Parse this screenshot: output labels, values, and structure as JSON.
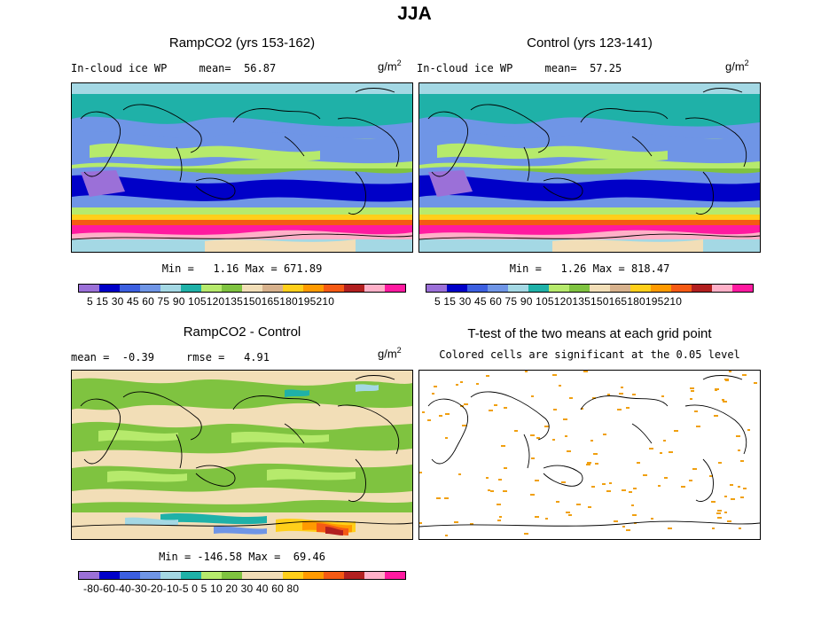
{
  "figure": {
    "title": "JJA"
  },
  "panels": {
    "ramp": {
      "title": "RampCO2 (yrs 153-162)",
      "left_label": "In-cloud ice WP     mean=  56.87",
      "units_base": "g/m",
      "units_sup": "2",
      "stats": "Min =   1.16 Max = 671.89"
    },
    "control": {
      "title": "Control (yrs 123-141)",
      "left_label": "In-cloud ice WP     mean=  57.25",
      "units_base": "g/m",
      "units_sup": "2",
      "stats": "Min =   1.26 Max = 818.47"
    },
    "diff": {
      "title": "RampCO2 - Control",
      "left_label": "mean =  -0.39     rmse =   4.91",
      "units_base": "g/m",
      "units_sup": "2",
      "stats": "Min = -146.58 Max =  69.46"
    },
    "ttest": {
      "title": "T-test of the two means at each grid point",
      "subtitle": "Colored cells are significant at the 0.05 level"
    }
  },
  "colorbars": {
    "abs": {
      "colors": [
        "#9b70d8",
        "#0000c8",
        "#3c5fe0",
        "#6f95e6",
        "#a4d8e4",
        "#1fb1a8",
        "#b6ea6c",
        "#7fc340",
        "#f2deb7",
        "#d7b18c",
        "#ffcf1a",
        "#ff9a00",
        "#f55a14",
        "#b22020",
        "#ffb0c8",
        "#ff1aa0"
      ],
      "labels_text": "5  15  30  45  60  75  90 105120135150165180195210"
    },
    "diff": {
      "colors": [
        "#9b70d8",
        "#0000c8",
        "#3c5fe0",
        "#6f95e6",
        "#a4d8e4",
        "#1fb1a8",
        "#b6ea6c",
        "#7fc340",
        "#f2deb7",
        "#f2deb7",
        "#ffcf1a",
        "#ff9a00",
        "#f55a14",
        "#b22020",
        "#ffb0c8",
        "#ff1aa0"
      ],
      "labels_text": "-80-60-40-30-20-10-5  0   5  10  20  30  40  60  80"
    }
  },
  "colors": {
    "significant_cell": "#f0a010",
    "coastline": "#000000"
  }
}
